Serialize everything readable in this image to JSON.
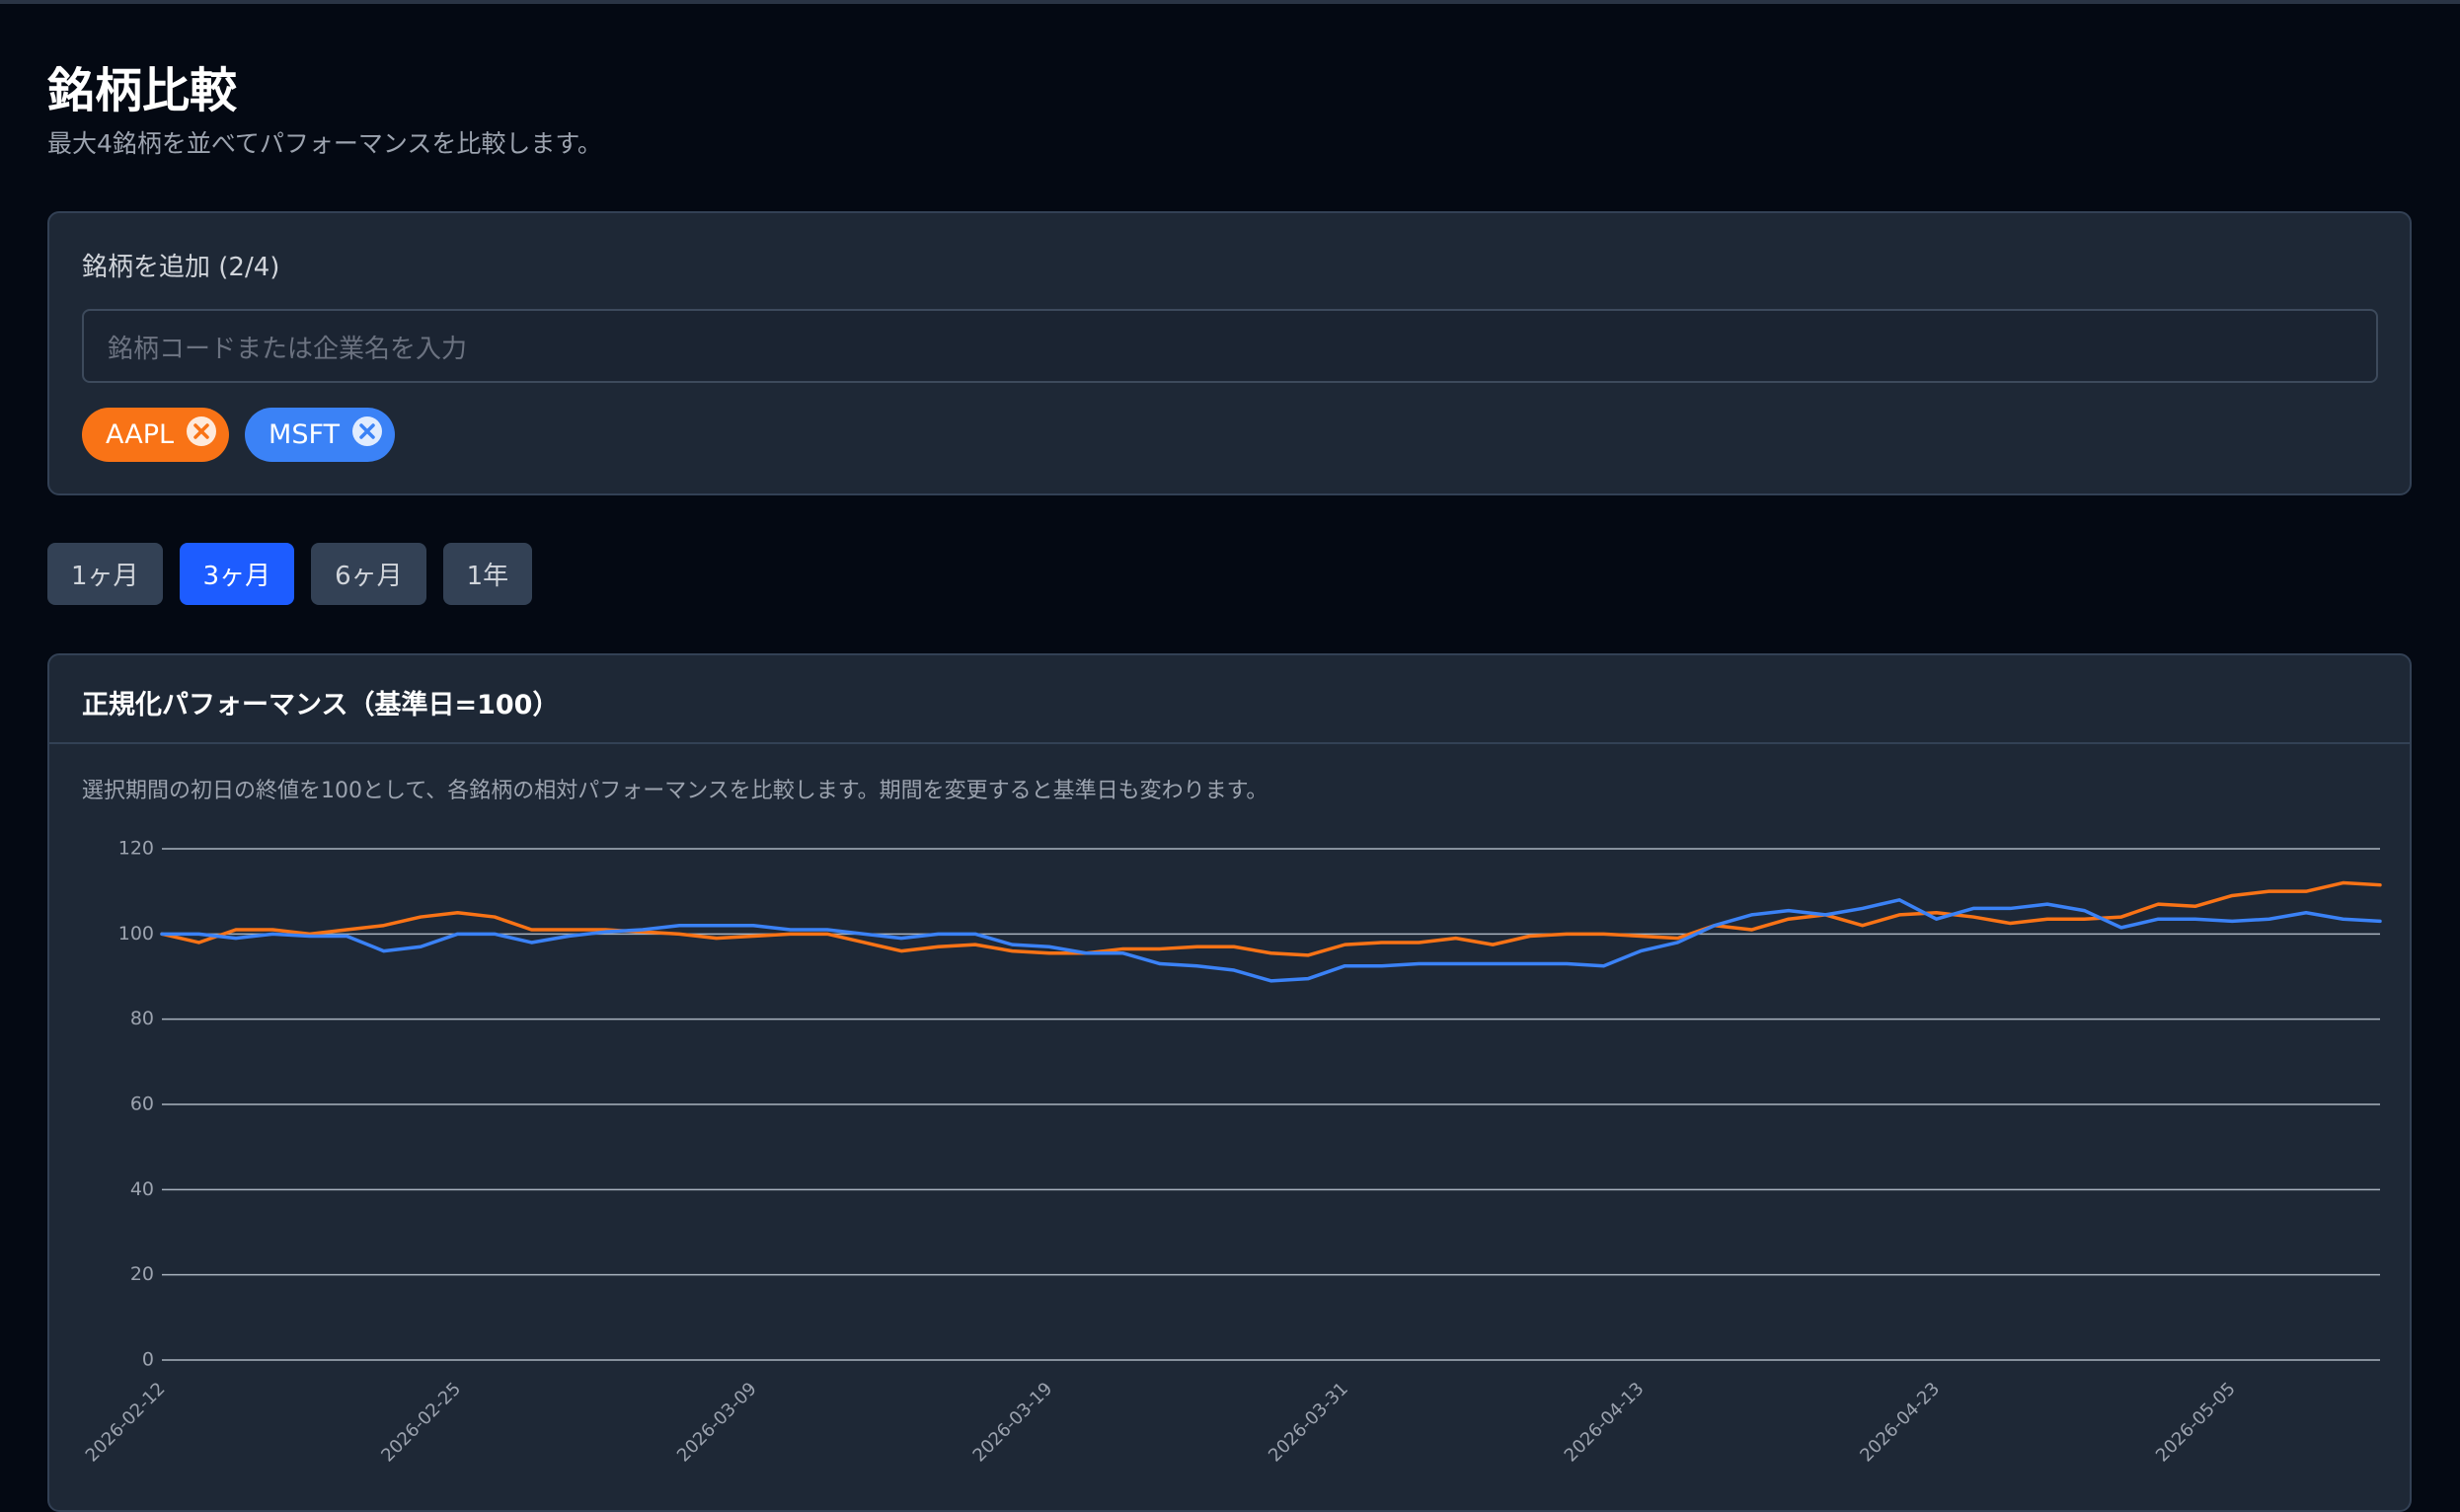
{
  "header": {
    "title": "銘柄比較",
    "subtitle": "最大4銘柄を並べてパフォーマンスを比較します。"
  },
  "add_panel": {
    "label": "銘柄を追加 (2/4)",
    "placeholder": "銘柄コードまたは企業名を入力"
  },
  "periods": {
    "options": [
      "1ヶ月",
      "3ヶ月",
      "6ヶ月",
      "1年"
    ],
    "active": 1
  },
  "chart_data": {
    "type": "line",
    "title": "正規化パフォーマンス（基準日=100）",
    "subtitle": "選択期間の初日の終値を100として、各銘柄の相対パフォーマンスを比較します。期間を変更すると基準日も変わります。",
    "categories": [
      "2026-02-12",
      null,
      null,
      null,
      null,
      null,
      null,
      null,
      "2026-02-25",
      null,
      null,
      null,
      null,
      null,
      null,
      null,
      "2026-03-09",
      null,
      null,
      null,
      null,
      null,
      null,
      null,
      "2026-03-19",
      null,
      null,
      null,
      null,
      null,
      null,
      null,
      "2026-03-31",
      null,
      null,
      null,
      null,
      null,
      null,
      null,
      "2026-04-13",
      null,
      null,
      null,
      null,
      null,
      null,
      null,
      "2026-04-23",
      null,
      null,
      null,
      null,
      null,
      null,
      null,
      "2026-05-05",
      null,
      null,
      null,
      null
    ],
    "series": [
      {
        "name": "AAPL",
        "color": "#f97316",
        "values": [
          100,
          98,
          101,
          101,
          100,
          101,
          102,
          104,
          105,
          104,
          101,
          101,
          101,
          100.5,
          100,
          99,
          99.5,
          100,
          100,
          98,
          96,
          97,
          97.5,
          96,
          95.5,
          95.5,
          96.5,
          96.5,
          97,
          97,
          95.5,
          95,
          97.5,
          98,
          98,
          99,
          97.5,
          99.5,
          100,
          100,
          99.5,
          99,
          102,
          101,
          103.5,
          104.5,
          102,
          104.5,
          105,
          104,
          102.5,
          103.5,
          103.5,
          104,
          107,
          106.5,
          109,
          110,
          110,
          112,
          111.5
        ]
      },
      {
        "name": "MSFT",
        "color": "#3b82f6",
        "values": [
          100,
          100,
          99,
          100,
          99.5,
          99.5,
          96,
          97,
          100,
          100,
          98,
          99.5,
          100.5,
          101,
          102,
          102,
          102,
          101,
          101,
          100,
          99,
          100,
          100,
          97.5,
          97,
          95.5,
          95.5,
          93,
          92.5,
          91.5,
          89,
          89.5,
          92.5,
          92.5,
          93,
          93,
          93,
          93,
          93,
          92.5,
          96,
          98,
          102,
          104.5,
          105.5,
          104.5,
          106,
          108,
          103.5,
          106,
          106,
          107,
          105.5,
          101.5,
          103.5,
          103.5,
          103,
          103.5,
          105,
          103.5,
          103
        ]
      }
    ],
    "ylim": [
      0,
      120
    ],
    "yticks": [
      0,
      20,
      40,
      60,
      80,
      100,
      120
    ],
    "grid": true
  }
}
